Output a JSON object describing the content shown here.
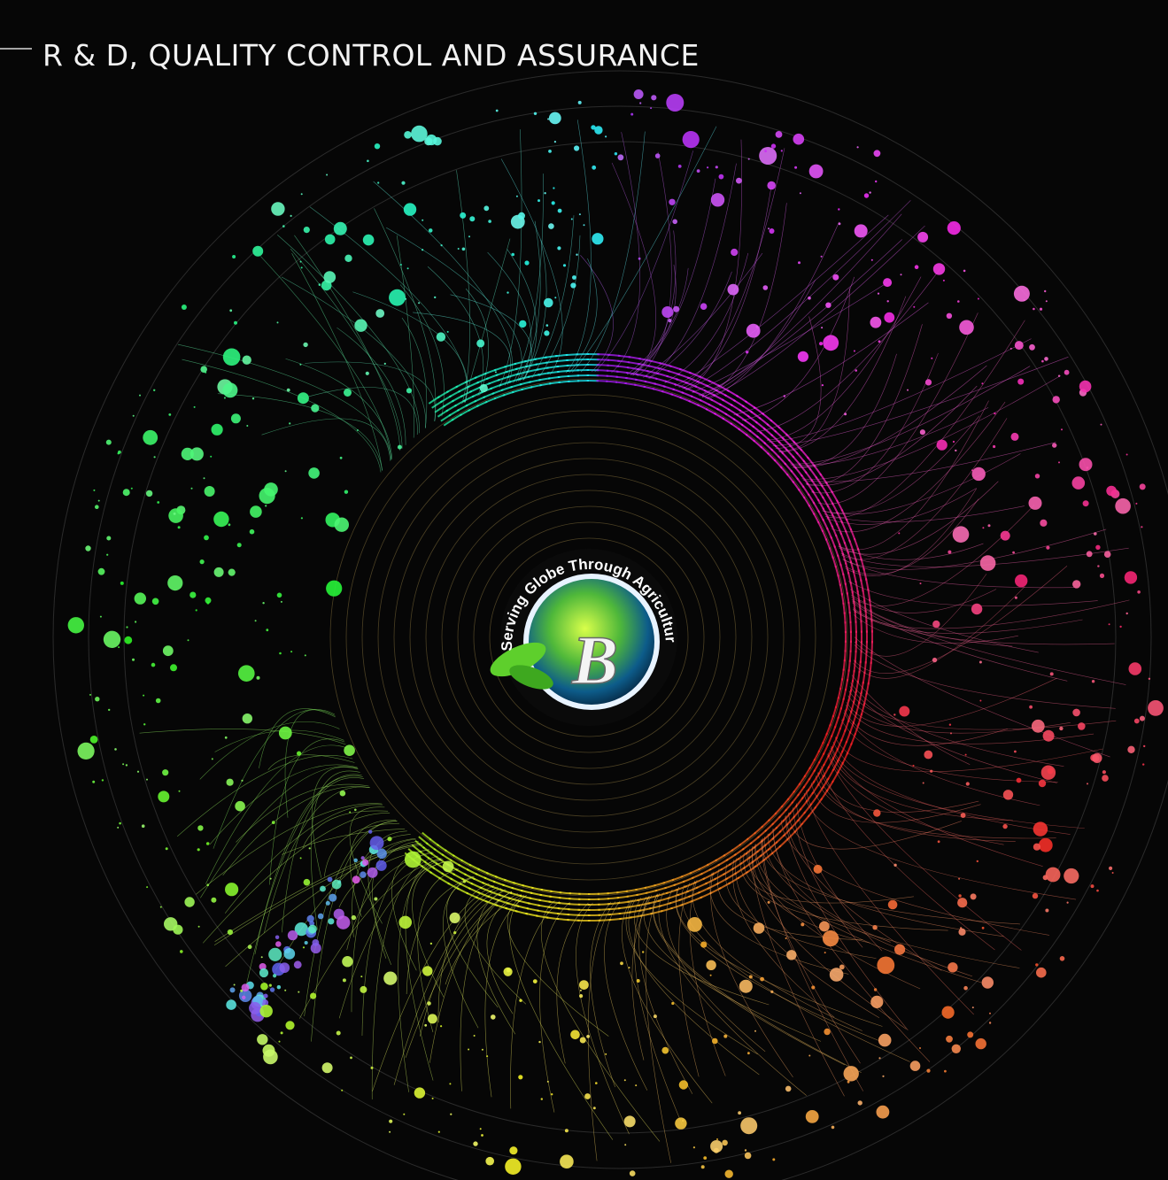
{
  "header": {
    "title": "R & D, QUALITY CONTROL AND ASSURANCE"
  },
  "logo": {
    "tagline": "Serving Globe Through Agriculture",
    "monogram": "B"
  }
}
